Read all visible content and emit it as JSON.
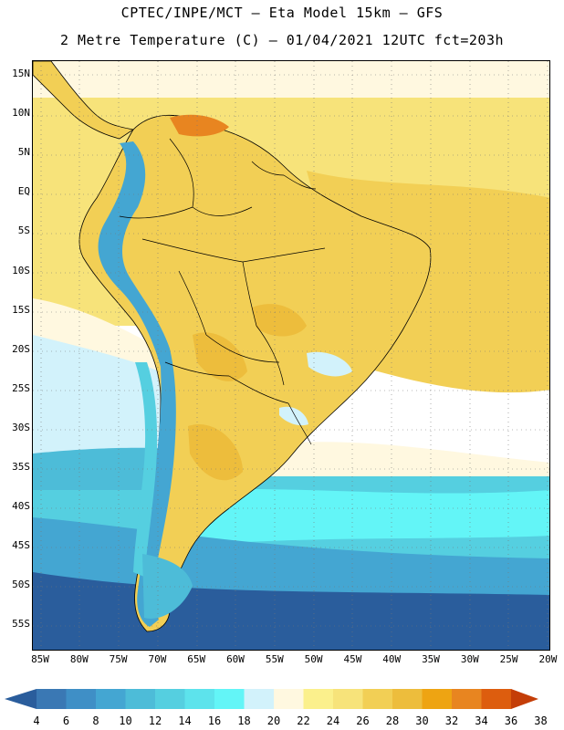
{
  "header": {
    "title_line1": "CPTEC/INPE/MCT –  Eta Model 15km – GFS",
    "title_line2": "2 Metre Temperature (C) – 01/04/2021 12UTC fct=203h"
  },
  "axes": {
    "lat_labels": [
      "15N",
      "10N",
      "5N",
      "EQ",
      "5S",
      "10S",
      "15S",
      "20S",
      "25S",
      "30S",
      "35S",
      "40S",
      "45S",
      "50S",
      "55S"
    ],
    "lon_labels": [
      "85W",
      "80W",
      "75W",
      "70W",
      "65W",
      "60W",
      "55W",
      "50W",
      "45W",
      "40W",
      "35W",
      "30W",
      "25W",
      "20W"
    ]
  },
  "legend": {
    "values": [
      "4",
      "6",
      "8",
      "10",
      "12",
      "14",
      "16",
      "18",
      "20",
      "22",
      "24",
      "26",
      "28",
      "30",
      "32",
      "34",
      "36",
      "38"
    ],
    "colors": [
      "#2a5d9c",
      "#3a78b4",
      "#3f8fc6",
      "#44a6d2",
      "#4dbcd8",
      "#55cfe0",
      "#5de3ec",
      "#63f5f7",
      "#d2f2fb",
      "#fff8e0",
      "#fbf08c",
      "#f7e37a",
      "#f2cf55",
      "#edbd3c",
      "#eea412",
      "#e88520",
      "#dd5d0e",
      "#c43e08"
    ],
    "arrow_left_color": "#2a5d9c",
    "arrow_right_color": "#c43e08"
  },
  "map_colors": {
    "ocean_far_north": "#fff8e0",
    "ocean_tropical": "#f7e37a",
    "ocean_tropical_dark": "#f2cf55",
    "ocean_subtropical": "#d2f2fb",
    "ocean_midlat": "#55cfe0",
    "ocean_cold": "#44a6d2",
    "ocean_polar": "#2a5d9c",
    "land_base": "#f2cf55",
    "land_hot": "#edbd3c",
    "land_very_hot": "#e88520",
    "andes_cold": "#44a6d2",
    "border_color": "#000000"
  }
}
